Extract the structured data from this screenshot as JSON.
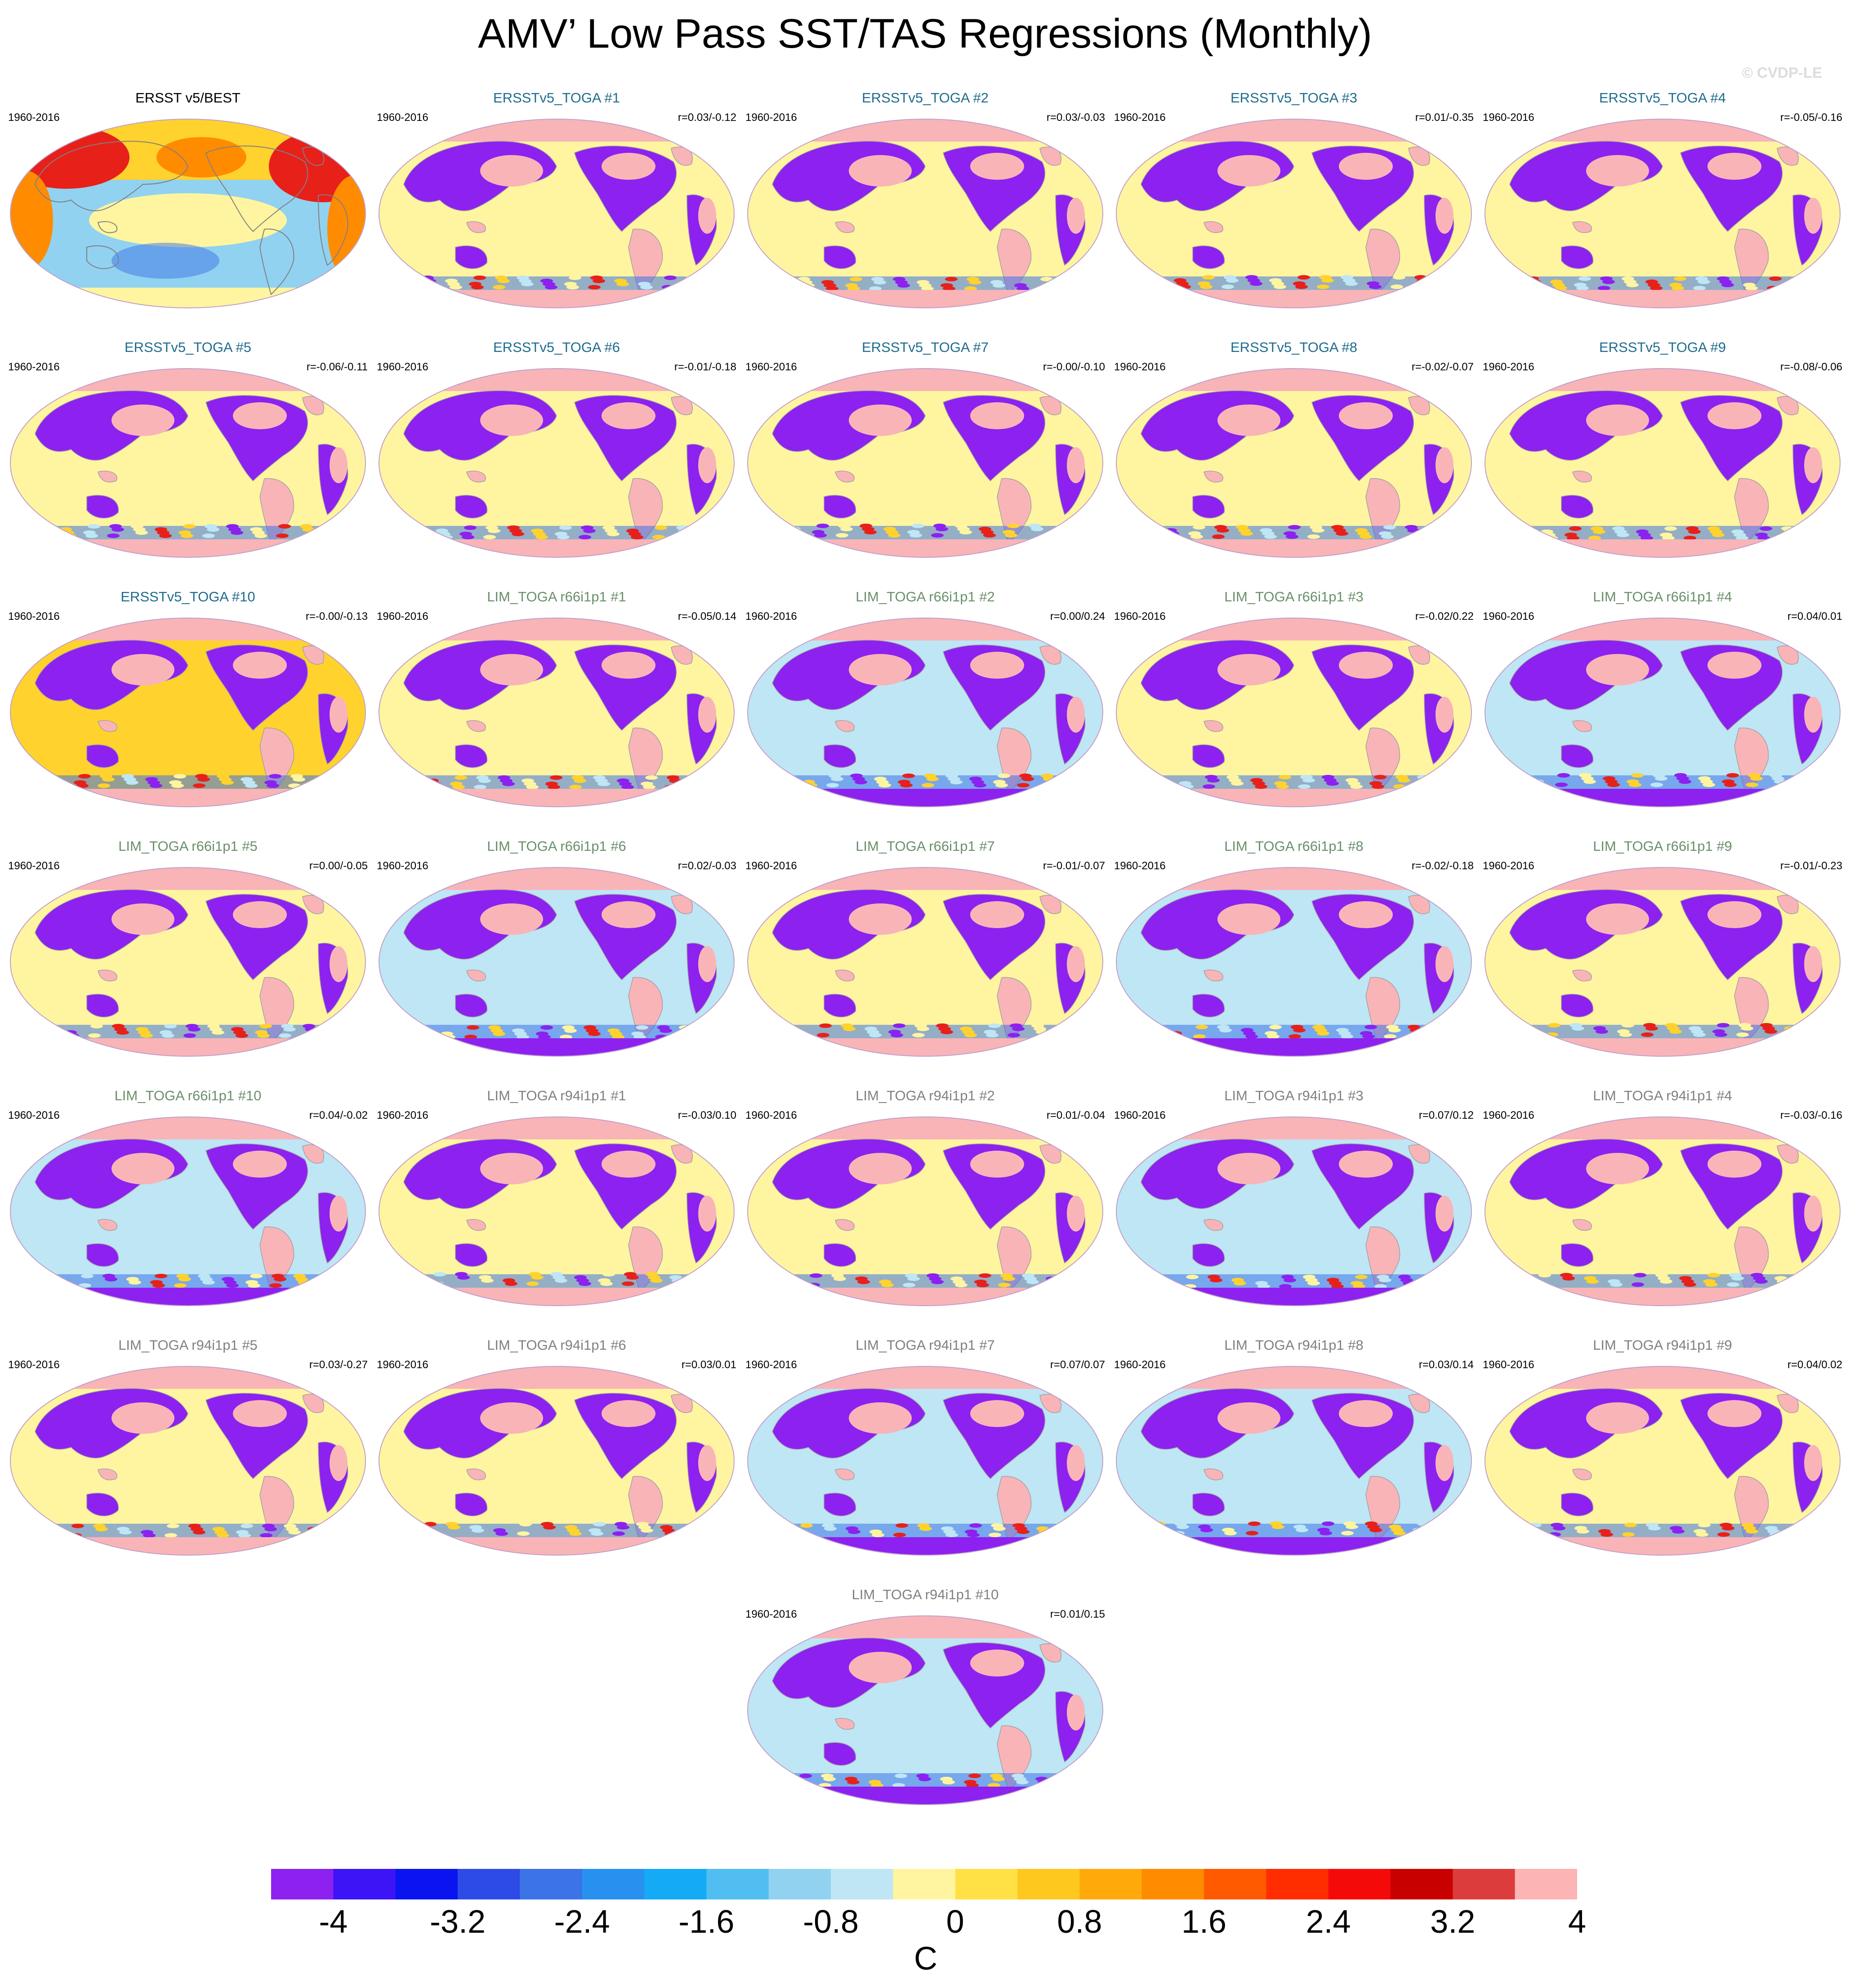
{
  "title": "AMV’ Low Pass SST/TAS Regressions (Monthly)",
  "watermark": "© CVDP-LE",
  "colors": {
    "obs_title": "#000000",
    "ersst_title": "#1f6b8e",
    "lim_title": "#6a8f6a",
    "r94_title": "#808080"
  },
  "legend": {
    "units": "C",
    "tick_labels": [
      "-4",
      "-3.2",
      "-2.4",
      "-1.6",
      "-0.8",
      "0",
      "0.8",
      "1.6",
      "2.4",
      "3.2",
      "4"
    ],
    "colors": [
      "#8c21f0",
      "#3c14f5",
      "#0a14f0",
      "#2d4be6",
      "#3c73e6",
      "#2891f0",
      "#14aaf5",
      "#50bef0",
      "#91d2f0",
      "#bee6f5",
      "#fff5a0",
      "#ffe146",
      "#ffc81e",
      "#ffaa0a",
      "#ff8c00",
      "#ff5a00",
      "#ff2d00",
      "#f50a0a",
      "#c80000",
      "#dc3c3c",
      "#fcb4b4"
    ]
  },
  "chart_data": {
    "type": "map",
    "variable": "AMV’ Low Pass SST/TAS regression",
    "units": "C",
    "contour_levels": [
      -4,
      -3.6,
      -3.2,
      -2.8,
      -2.4,
      -2,
      -1.6,
      -1.2,
      -0.8,
      -0.4,
      0,
      0.4,
      0.8,
      1.2,
      1.6,
      2,
      2.4,
      2.8,
      3.2,
      3.6,
      4
    ],
    "panels": [
      {
        "name": "ERSST v5/BEST",
        "period": "1960-2016",
        "corr": "",
        "pattern": "obs"
      },
      {
        "name": "ERSSTv5_TOGA #1",
        "period": "1960-2016",
        "corr": "r=0.03/-0.12",
        "pattern": "y"
      },
      {
        "name": "ERSSTv5_TOGA #2",
        "period": "1960-2016",
        "corr": "r=0.03/-0.03",
        "pattern": "y"
      },
      {
        "name": "ERSSTv5_TOGA #3",
        "period": "1960-2016",
        "corr": "r=0.01/-0.35",
        "pattern": "y"
      },
      {
        "name": "ERSSTv5_TOGA #4",
        "period": "1960-2016",
        "corr": "r=-0.05/-0.16",
        "pattern": "y"
      },
      {
        "name": "ERSSTv5_TOGA #5",
        "period": "1960-2016",
        "corr": "r=-0.06/-0.11",
        "pattern": "y"
      },
      {
        "name": "ERSSTv5_TOGA #6",
        "period": "1960-2016",
        "corr": "r=-0.01/-0.18",
        "pattern": "y"
      },
      {
        "name": "ERSSTv5_TOGA #7",
        "period": "1960-2016",
        "corr": "r=-0.00/-0.10",
        "pattern": "y"
      },
      {
        "name": "ERSSTv5_TOGA #8",
        "period": "1960-2016",
        "corr": "r=-0.02/-0.07",
        "pattern": "y"
      },
      {
        "name": "ERSSTv5_TOGA #9",
        "period": "1960-2016",
        "corr": "r=-0.08/-0.06",
        "pattern": "y"
      },
      {
        "name": "ERSSTv5_TOGA #10",
        "period": "1960-2016",
        "corr": "r=-0.00/-0.13",
        "pattern": "o"
      },
      {
        "name": "LIM_TOGA r66i1p1 #1",
        "period": "1960-2016",
        "corr": "r=-0.05/0.14",
        "pattern": "y"
      },
      {
        "name": "LIM_TOGA r66i1p1 #2",
        "period": "1960-2016",
        "corr": "r=0.00/0.24",
        "pattern": "b"
      },
      {
        "name": "LIM_TOGA r66i1p1 #3",
        "period": "1960-2016",
        "corr": "r=-0.02/0.22",
        "pattern": "y"
      },
      {
        "name": "LIM_TOGA r66i1p1 #4",
        "period": "1960-2016",
        "corr": "r=0.04/0.01",
        "pattern": "b"
      },
      {
        "name": "LIM_TOGA r66i1p1 #5",
        "period": "1960-2016",
        "corr": "r=0.00/-0.05",
        "pattern": "y"
      },
      {
        "name": "LIM_TOGA r66i1p1 #6",
        "period": "1960-2016",
        "corr": "r=0.02/-0.03",
        "pattern": "b"
      },
      {
        "name": "LIM_TOGA r66i1p1 #7",
        "period": "1960-2016",
        "corr": "r=-0.01/-0.07",
        "pattern": "y"
      },
      {
        "name": "LIM_TOGA r66i1p1 #8",
        "period": "1960-2016",
        "corr": "r=-0.02/-0.18",
        "pattern": "b"
      },
      {
        "name": "LIM_TOGA r66i1p1 #9",
        "period": "1960-2016",
        "corr": "r=-0.01/-0.23",
        "pattern": "y"
      },
      {
        "name": "LIM_TOGA r66i1p1 #10",
        "period": "1960-2016",
        "corr": "r=0.04/-0.02",
        "pattern": "b"
      },
      {
        "name": "LIM_TOGA r94i1p1 #1",
        "period": "1960-2016",
        "corr": "r=-0.03/0.10",
        "pattern": "y"
      },
      {
        "name": "LIM_TOGA r94i1p1 #2",
        "period": "1960-2016",
        "corr": "r=0.01/-0.04",
        "pattern": "y"
      },
      {
        "name": "LIM_TOGA r94i1p1 #3",
        "period": "1960-2016",
        "corr": "r=0.07/0.12",
        "pattern": "b"
      },
      {
        "name": "LIM_TOGA r94i1p1 #4",
        "period": "1960-2016",
        "corr": "r=-0.03/-0.16",
        "pattern": "y"
      },
      {
        "name": "LIM_TOGA r94i1p1 #5",
        "period": "1960-2016",
        "corr": "r=0.03/-0.27",
        "pattern": "y"
      },
      {
        "name": "LIM_TOGA r94i1p1 #6",
        "period": "1960-2016",
        "corr": "r=0.03/0.01",
        "pattern": "y"
      },
      {
        "name": "LIM_TOGA r94i1p1 #7",
        "period": "1960-2016",
        "corr": "r=0.07/0.07",
        "pattern": "b"
      },
      {
        "name": "LIM_TOGA r94i1p1 #8",
        "period": "1960-2016",
        "corr": "r=0.03/0.14",
        "pattern": "b"
      },
      {
        "name": "LIM_TOGA r94i1p1 #9",
        "period": "1960-2016",
        "corr": "r=0.04/0.02",
        "pattern": "y"
      },
      {
        "name": "LIM_TOGA r94i1p1 #10",
        "period": "1960-2016",
        "corr": "r=0.01/0.15",
        "pattern": "b"
      }
    ]
  }
}
